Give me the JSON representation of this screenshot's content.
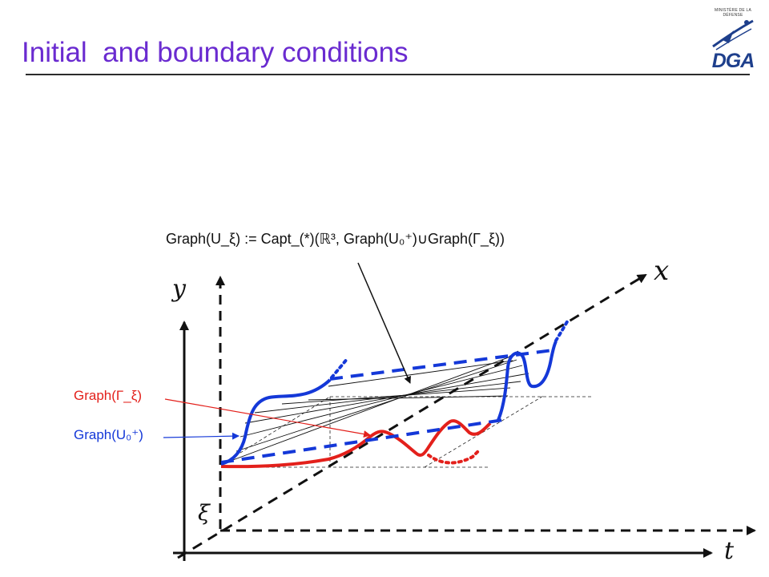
{
  "slide": {
    "title": "Initial  and boundary conditions"
  },
  "logo": {
    "caption": "MINISTÈRE DE LA DÉFENSE",
    "wordmark": "DGA"
  },
  "diagram": {
    "formula": "Graph(U_ξ) := Capt_(*)(ℝ³, Graph(U₀⁺)∪Graph(Γ_ξ))",
    "axes": {
      "x": "x",
      "y": "y",
      "t": "t",
      "xi": "ξ"
    },
    "labels": {
      "graph_gamma": "Graph(Γ_ξ)",
      "graph_u0": "Graph(U₀⁺)"
    },
    "colors": {
      "title": "#6a2bd0",
      "blue_curve": "#1438d8",
      "red_curve": "#e3201b",
      "axes": "#111111",
      "logo": "#1e3f8c"
    }
  }
}
